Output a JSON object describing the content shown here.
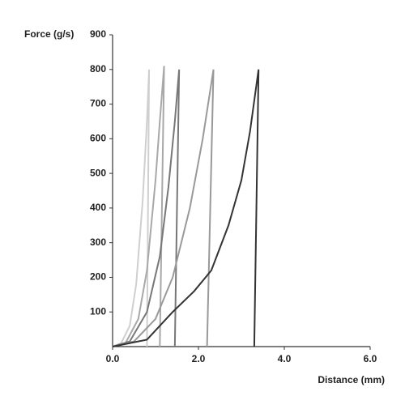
{
  "chart_data": {
    "type": "line",
    "ylabel": "Force (g/s)",
    "xlabel": "Distance (mm)",
    "xlim": [
      0,
      6
    ],
    "ylim": [
      0,
      900
    ],
    "xticks": [
      {
        "value": 0,
        "label": "0.0"
      },
      {
        "value": 2,
        "label": "2.0"
      },
      {
        "value": 4,
        "label": "4.0"
      },
      {
        "value": 6,
        "label": "6.0"
      }
    ],
    "yticks": [
      100,
      200,
      300,
      400,
      500,
      600,
      700,
      800,
      900
    ],
    "series": [
      {
        "color": "#cfcfcf",
        "x": [
          0,
          0.2,
          0.4,
          0.55,
          0.7,
          0.8,
          0.85,
          0.8
        ],
        "values": [
          0,
          10,
          60,
          180,
          420,
          650,
          800,
          0
        ]
      },
      {
        "color": "#a8a8a8",
        "x": [
          0,
          0.3,
          0.6,
          0.8,
          1.0,
          1.1,
          1.2,
          1.1
        ],
        "values": [
          0,
          10,
          80,
          220,
          480,
          650,
          810,
          0
        ]
      },
      {
        "color": "#777777",
        "x": [
          0,
          0.4,
          0.8,
          1.1,
          1.3,
          1.45,
          1.55,
          1.45
        ],
        "values": [
          0,
          15,
          100,
          260,
          460,
          650,
          800,
          0
        ]
      },
      {
        "color": "#999999",
        "x": [
          0,
          0.5,
          1.0,
          1.4,
          1.8,
          2.1,
          2.35,
          2.2
        ],
        "values": [
          0,
          15,
          80,
          200,
          400,
          600,
          800,
          0
        ]
      },
      {
        "color": "#333333",
        "x": [
          0,
          0.8,
          1.4,
          1.9,
          2.3,
          2.7,
          3.0,
          3.2,
          3.4,
          3.3
        ],
        "values": [
          0,
          20,
          100,
          160,
          220,
          350,
          480,
          620,
          800,
          0
        ]
      }
    ]
  }
}
